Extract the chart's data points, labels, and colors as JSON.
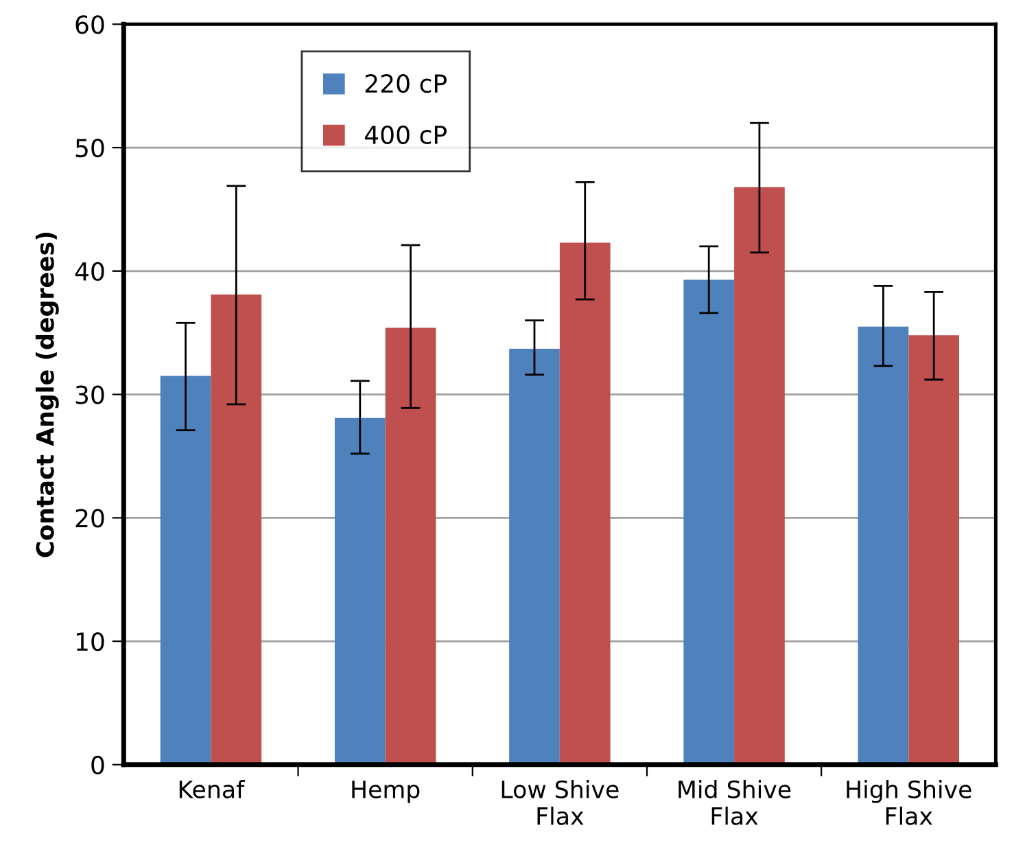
{
  "chart_data": {
    "type": "bar",
    "ylabel": "Contact Angle (degrees)",
    "categories": [
      "Kenaf",
      "Hemp",
      "Low Shive\nFlax",
      "Mid Shive\nFlax",
      "High Shive\nFlax"
    ],
    "series": [
      {
        "name": "220 cP",
        "color": "#4f81bd",
        "values": [
          31.5,
          28.1,
          33.7,
          39.3,
          35.5
        ],
        "errors": [
          [
            27.1,
            35.8
          ],
          [
            25.2,
            31.1
          ],
          [
            31.6,
            36.0
          ],
          [
            36.6,
            42.0
          ],
          [
            32.3,
            38.8
          ]
        ]
      },
      {
        "name": "400 cP",
        "color": "#c0504d",
        "values": [
          38.1,
          35.4,
          42.3,
          46.8,
          34.8
        ],
        "errors": [
          [
            29.2,
            46.9
          ],
          [
            28.9,
            42.1
          ],
          [
            37.7,
            47.2
          ],
          [
            41.5,
            52.0
          ],
          [
            31.2,
            38.3
          ]
        ]
      }
    ],
    "ylim": [
      0,
      60
    ],
    "yticks": [
      0,
      10,
      20,
      30,
      40,
      50,
      60
    ],
    "grid": "y",
    "legend": "top left"
  }
}
